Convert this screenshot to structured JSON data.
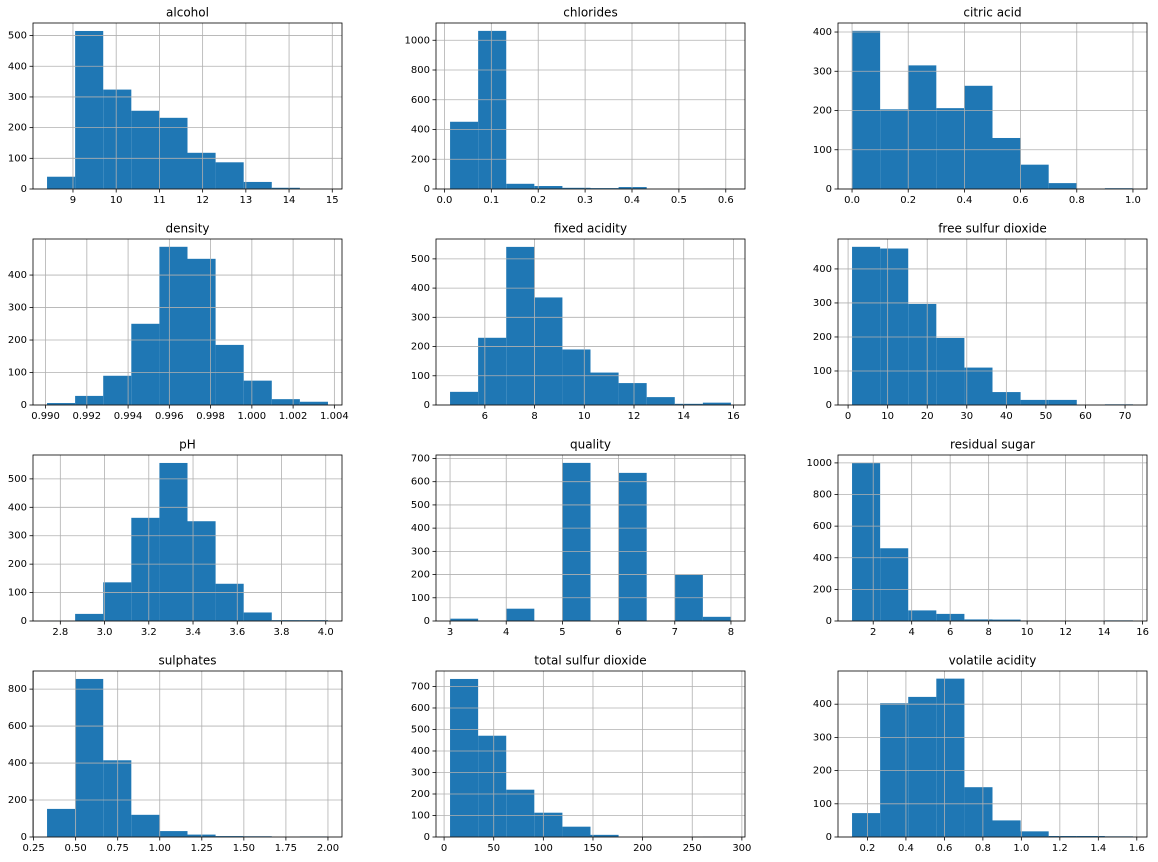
{
  "chart_data": [
    {
      "type": "histogram",
      "title": "alcohol",
      "color": "#1f77b4",
      "grid": true,
      "bins": [
        8.4,
        9.05,
        9.7,
        10.35,
        11.0,
        11.65,
        12.3,
        12.95,
        13.6,
        14.25,
        14.9
      ],
      "values": [
        40,
        515,
        324,
        255,
        232,
        118,
        87,
        23,
        4,
        1
      ],
      "xlim": [
        8.075,
        15.225
      ],
      "xticks": [
        9,
        10,
        11,
        12,
        13,
        14,
        15
      ],
      "ylim": [
        0,
        541
      ],
      "yticks": [
        0,
        100,
        200,
        300,
        400,
        500
      ]
    },
    {
      "type": "histogram",
      "title": "chlorides",
      "color": "#1f77b4",
      "grid": true,
      "bins": [
        0.012,
        0.0719,
        0.1318,
        0.1917,
        0.2516,
        0.3115,
        0.3714,
        0.4313,
        0.4912,
        0.5511,
        0.611
      ],
      "values": [
        452,
        1063,
        35,
        20,
        8,
        6,
        13,
        0,
        0,
        2
      ],
      "xlim": [
        -0.018,
        0.641
      ],
      "xticks": [
        {
          "value": 0,
          "label": "0.0"
        },
        0.1,
        0.2,
        0.3,
        0.4,
        0.5,
        0.6
      ],
      "ylim": [
        0,
        1116
      ],
      "yticks": [
        0,
        200,
        400,
        600,
        800,
        1000
      ]
    },
    {
      "type": "histogram",
      "title": "citric acid",
      "color": "#1f77b4",
      "grid": true,
      "bins": [
        0,
        0.1,
        0.2,
        0.3,
        0.4,
        0.5,
        0.6,
        0.7,
        0.8,
        0.9,
        1.0
      ],
      "values": [
        403,
        203,
        315,
        206,
        263,
        130,
        62,
        15,
        0,
        2
      ],
      "xlim": [
        -0.05,
        1.05
      ],
      "xticks": [
        {
          "value": 0,
          "label": "0.0"
        },
        0.2,
        0.4,
        0.6,
        0.8,
        {
          "value": 1,
          "label": "1.0"
        }
      ],
      "ylim": [
        0,
        423
      ],
      "yticks": [
        0,
        100,
        200,
        300,
        400
      ]
    },
    {
      "type": "histogram",
      "title": "density",
      "color": "#1f77b4",
      "grid": true,
      "bins": [
        0.99007,
        0.991432,
        0.992794,
        0.994156,
        0.995518,
        0.99688,
        0.998242,
        0.999604,
        1.000966,
        1.002328,
        1.00369
      ],
      "values": [
        6,
        28,
        90,
        250,
        487,
        450,
        185,
        75,
        18,
        10
      ],
      "xlim": [
        0.98939,
        1.00437
      ],
      "xticks": [
        {
          "value": 0.99,
          "label": "0.990"
        },
        0.992,
        0.994,
        0.996,
        0.998,
        {
          "value": 1,
          "label": "1.000"
        },
        1.002,
        1.004
      ],
      "ylim": [
        0,
        511
      ],
      "yticks": [
        0,
        100,
        200,
        300,
        400
      ]
    },
    {
      "type": "histogram",
      "title": "fixed acidity",
      "color": "#1f77b4",
      "grid": true,
      "bins": [
        4.6,
        5.73,
        6.86,
        7.99,
        9.12,
        10.25,
        11.38,
        12.51,
        13.64,
        14.77,
        15.9
      ],
      "values": [
        45,
        230,
        541,
        368,
        190,
        111,
        75,
        27,
        4,
        8
      ],
      "xlim": [
        4.035,
        16.465
      ],
      "xticks": [
        6,
        8,
        10,
        12,
        14,
        16
      ],
      "ylim": [
        0,
        568
      ],
      "yticks": [
        0,
        100,
        200,
        300,
        400,
        500
      ]
    },
    {
      "type": "histogram",
      "title": "free sulfur dioxide",
      "color": "#1f77b4",
      "grid": true,
      "bins": [
        1,
        8.1,
        15.2,
        22.3,
        29.4,
        36.5,
        43.6,
        50.7,
        57.8,
        64.9,
        72
      ],
      "values": [
        465,
        460,
        297,
        197,
        110,
        38,
        15,
        15,
        0,
        2
      ],
      "xlim": [
        -2.55,
        75.55
      ],
      "xticks": [
        0,
        10,
        20,
        30,
        40,
        50,
        60,
        70
      ],
      "ylim": [
        0,
        488
      ],
      "yticks": [
        0,
        100,
        200,
        300,
        400
      ]
    },
    {
      "type": "histogram",
      "title": "pH",
      "color": "#1f77b4",
      "grid": true,
      "bins": [
        2.74,
        2.867,
        2.994,
        3.121,
        3.248,
        3.375,
        3.502,
        3.629,
        3.756,
        3.883,
        4.01
      ],
      "values": [
        1,
        25,
        136,
        363,
        556,
        351,
        131,
        30,
        3,
        3
      ],
      "xlim": [
        2.6765,
        4.0735
      ],
      "xticks": [
        2.8,
        {
          "value": 3,
          "label": "3.0"
        },
        3.2,
        3.4,
        3.6,
        3.8,
        {
          "value": 4,
          "label": "4.0"
        }
      ],
      "ylim": [
        0,
        584
      ],
      "yticks": [
        0,
        100,
        200,
        300,
        400,
        500
      ]
    },
    {
      "type": "histogram",
      "title": "quality",
      "color": "#1f77b4",
      "grid": true,
      "bins": [
        3,
        3.5,
        4,
        4.5,
        5,
        5.5,
        6,
        6.5,
        7,
        7.5,
        8
      ],
      "values": [
        10,
        0,
        53,
        0,
        681,
        0,
        638,
        0,
        199,
        18
      ],
      "xlim": [
        2.75,
        8.25
      ],
      "xticks": [
        3,
        4,
        5,
        6,
        7,
        8
      ],
      "ylim": [
        0,
        715
      ],
      "yticks": [
        0,
        100,
        200,
        300,
        400,
        500,
        600,
        700
      ]
    },
    {
      "type": "histogram",
      "title": "residual sugar",
      "color": "#1f77b4",
      "grid": true,
      "bins": [
        0.9,
        2.36,
        3.82,
        5.28,
        6.74,
        8.2,
        9.66,
        11.12,
        12.58,
        14.04,
        15.5
      ],
      "values": [
        1000,
        460,
        67,
        45,
        10,
        9,
        3,
        1,
        0,
        4
      ],
      "xlim": [
        0.17,
        16.23
      ],
      "xticks": [
        2,
        4,
        6,
        8,
        10,
        12,
        14,
        16
      ],
      "ylim": [
        0,
        1050
      ],
      "yticks": [
        0,
        200,
        400,
        600,
        800,
        1000
      ]
    },
    {
      "type": "histogram",
      "title": "sulphates",
      "color": "#1f77b4",
      "grid": true,
      "bins": [
        0.33,
        0.497,
        0.664,
        0.831,
        0.998,
        1.165,
        1.332,
        1.499,
        1.666,
        1.833,
        2.0
      ],
      "values": [
        152,
        855,
        415,
        120,
        32,
        13,
        5,
        4,
        0,
        3
      ],
      "xlim": [
        0.2465,
        2.0835
      ],
      "xticks": [
        0.25,
        {
          "value": 0.5,
          "label": "0.50"
        },
        0.75,
        {
          "value": 1,
          "label": "1.00"
        },
        1.25,
        {
          "value": 1.5,
          "label": "1.50"
        },
        1.75,
        {
          "value": 2,
          "label": "2.00"
        }
      ],
      "ylim": [
        0,
        898
      ],
      "yticks": [
        0,
        200,
        400,
        600,
        800
      ]
    },
    {
      "type": "histogram",
      "title": "total sulfur dioxide",
      "color": "#1f77b4",
      "grid": true,
      "bins": [
        6,
        34.3,
        62.6,
        90.9,
        119.2,
        147.5,
        175.8,
        204.1,
        232.4,
        260.7,
        289
      ],
      "values": [
        735,
        471,
        220,
        113,
        48,
        10,
        0,
        0,
        0,
        2
      ],
      "xlim": [
        -8.15,
        303.15
      ],
      "xticks": [
        0,
        50,
        100,
        150,
        200,
        250,
        300
      ],
      "ylim": [
        0,
        772
      ],
      "yticks": [
        0,
        100,
        200,
        300,
        400,
        500,
        600,
        700
      ]
    },
    {
      "type": "histogram",
      "title": "volatile acidity",
      "color": "#1f77b4",
      "grid": true,
      "bins": [
        0.12,
        0.266,
        0.412,
        0.558,
        0.704,
        0.85,
        0.996,
        1.142,
        1.288,
        1.434,
        1.58
      ],
      "values": [
        72,
        403,
        422,
        477,
        150,
        50,
        17,
        3,
        3,
        2
      ],
      "xlim": [
        0.047,
        1.653
      ],
      "xticks": [
        0.2,
        0.4,
        0.6,
        0.8,
        {
          "value": 1,
          "label": "1.0"
        },
        1.2,
        1.4,
        1.6
      ],
      "ylim": [
        0,
        500
      ],
      "yticks": [
        0,
        100,
        200,
        300,
        400
      ]
    }
  ]
}
